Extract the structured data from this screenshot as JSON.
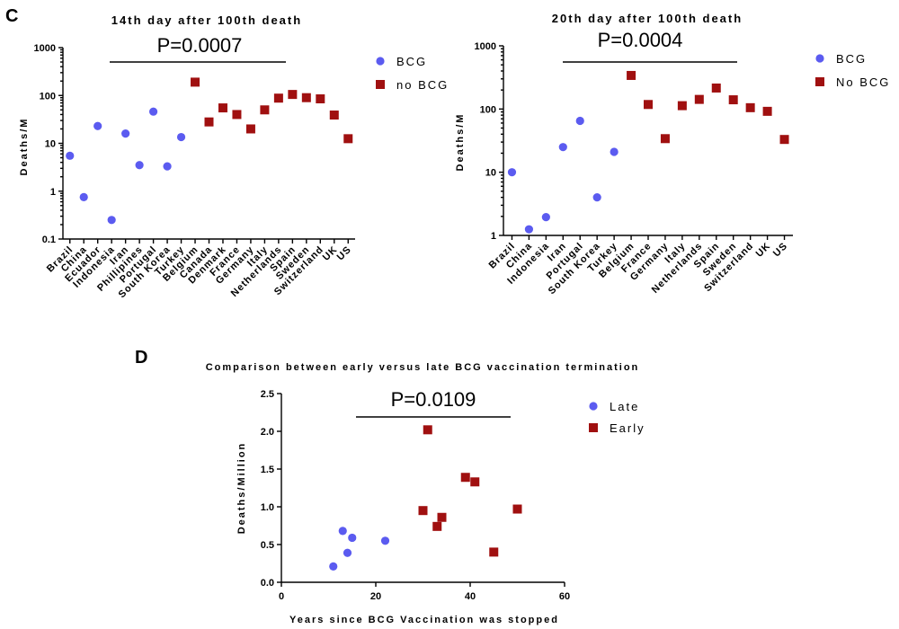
{
  "colors": {
    "bcg": "#5b5bf0",
    "nobcg": "#a01010"
  },
  "chart_data": [
    {
      "panel": "C",
      "type": "scatter",
      "title": "14th day after 100th death",
      "pvalue": "P=0.0007",
      "ylabel": "Deaths/M",
      "yscale": "log",
      "ylim": [
        0.1,
        1000
      ],
      "yticks": [
        "0.1",
        "1",
        "10",
        "100",
        "1000"
      ],
      "legend_position": "right",
      "categories": [
        "Brazil",
        "China",
        "Ecuador",
        "Indonesia",
        "Iran",
        "Phillipines",
        "Portugal",
        "South Korea",
        "Turkey",
        "Belgium",
        "Canada",
        "Denmark",
        "France",
        "Germany",
        "Italy",
        "Netherlands",
        "Spain",
        "Sweden",
        "Switzerland",
        "UK",
        "US"
      ],
      "series": [
        {
          "name": "BCG",
          "marker": "circle",
          "color": "#5b5bf0",
          "points": [
            {
              "category": "Brazil",
              "value": 5.5
            },
            {
              "category": "China",
              "value": 0.75
            },
            {
              "category": "Ecuador",
              "value": 23
            },
            {
              "category": "Indonesia",
              "value": 0.25
            },
            {
              "category": "Iran",
              "value": 16
            },
            {
              "category": "Phillipines",
              "value": 3.5
            },
            {
              "category": "Portugal",
              "value": 46
            },
            {
              "category": "South Korea",
              "value": 3.3
            },
            {
              "category": "Turkey",
              "value": 13.5
            }
          ]
        },
        {
          "name": "no BCG",
          "marker": "square",
          "color": "#a01010",
          "points": [
            {
              "category": "Belgium",
              "value": 190
            },
            {
              "category": "Canada",
              "value": 28
            },
            {
              "category": "Denmark",
              "value": 55
            },
            {
              "category": "France",
              "value": 40
            },
            {
              "category": "Germany",
              "value": 20
            },
            {
              "category": "Italy",
              "value": 50
            },
            {
              "category": "Netherlands",
              "value": 88
            },
            {
              "category": "Spain",
              "value": 105
            },
            {
              "category": "Sweden",
              "value": 90
            },
            {
              "category": "Switzerland",
              "value": 85
            },
            {
              "category": "UK",
              "value": 39
            },
            {
              "category": "US",
              "value": 12.5
            }
          ]
        }
      ]
    },
    {
      "type": "scatter",
      "title": "20th day after 100th death",
      "pvalue": "P=0.0004",
      "ylabel": "Deaths/M",
      "yscale": "log",
      "ylim": [
        1,
        1000
      ],
      "yticks": [
        "1",
        "10",
        "100",
        "1000"
      ],
      "legend_position": "right",
      "categories": [
        "Brazil",
        "China",
        "Indonesia",
        "Iran",
        "Portugal",
        "South Korea",
        "Turkey",
        "Belgium",
        "France",
        "Germany",
        "Italy",
        "Netherlands",
        "Spain",
        "Sweden",
        "Switzerland",
        "UK",
        "US"
      ],
      "series": [
        {
          "name": "BCG",
          "marker": "circle",
          "color": "#5b5bf0",
          "points": [
            {
              "category": "Brazil",
              "value": 10
            },
            {
              "category": "China",
              "value": 1.25
            },
            {
              "category": "Indonesia",
              "value": 1.95
            },
            {
              "category": "Iran",
              "value": 25
            },
            {
              "category": "Portugal",
              "value": 65
            },
            {
              "category": "South Korea",
              "value": 4
            },
            {
              "category": "Turkey",
              "value": 21
            }
          ]
        },
        {
          "name": "No BCG",
          "marker": "square",
          "color": "#a01010",
          "points": [
            {
              "category": "Belgium",
              "value": 340
            },
            {
              "category": "France",
              "value": 118
            },
            {
              "category": "Germany",
              "value": 34
            },
            {
              "category": "Italy",
              "value": 113
            },
            {
              "category": "Netherlands",
              "value": 142
            },
            {
              "category": "Spain",
              "value": 215
            },
            {
              "category": "Sweden",
              "value": 140
            },
            {
              "category": "Switzerland",
              "value": 105
            },
            {
              "category": "UK",
              "value": 92
            },
            {
              "category": "US",
              "value": 33
            }
          ]
        }
      ]
    },
    {
      "panel": "D",
      "type": "scatter",
      "title": "Comparison between early versus late BCG vaccination termination",
      "pvalue": "P=0.0109",
      "xlabel": "Years since BCG Vaccination was stopped",
      "ylabel": "Deaths/Million",
      "xlim": [
        0,
        60
      ],
      "ylim": [
        0,
        2.5
      ],
      "xticks": [
        "0",
        "20",
        "40",
        "60"
      ],
      "yticks": [
        "0.0",
        "0.5",
        "1.0",
        "1.5",
        "2.0",
        "2.5"
      ],
      "legend_position": "right",
      "series": [
        {
          "name": "Late",
          "marker": "circle",
          "color": "#5b5bf0",
          "points": [
            {
              "x": 11,
              "y": 0.21
            },
            {
              "x": 13,
              "y": 0.68
            },
            {
              "x": 14,
              "y": 0.39
            },
            {
              "x": 15,
              "y": 0.59
            },
            {
              "x": 22,
              "y": 0.55
            }
          ]
        },
        {
          "name": "Early",
          "marker": "square",
          "color": "#a01010",
          "points": [
            {
              "x": 30,
              "y": 0.95
            },
            {
              "x": 31,
              "y": 2.02
            },
            {
              "x": 33,
              "y": 0.74
            },
            {
              "x": 34,
              "y": 0.86
            },
            {
              "x": 39,
              "y": 1.39
            },
            {
              "x": 41,
              "y": 1.33
            },
            {
              "x": 45,
              "y": 0.4
            },
            {
              "x": 50,
              "y": 0.97
            }
          ]
        }
      ]
    }
  ]
}
